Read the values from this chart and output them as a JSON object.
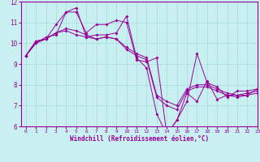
{
  "xlabel": "Windchill (Refroidissement éolien,°C)",
  "background_color": "#c8f0f0",
  "grid_color": "#b0e0e0",
  "line_color": "#990099",
  "xlim": [
    -0.5,
    23
  ],
  "ylim": [
    6,
    12
  ],
  "yticks": [
    6,
    7,
    8,
    9,
    10,
    11,
    12
  ],
  "xticks": [
    0,
    1,
    2,
    3,
    4,
    5,
    6,
    7,
    8,
    9,
    10,
    11,
    12,
    13,
    14,
    15,
    16,
    17,
    18,
    19,
    20,
    21,
    22,
    23
  ],
  "series": [
    [
      9.4,
      10.1,
      10.2,
      10.9,
      11.5,
      11.5,
      10.5,
      10.9,
      10.9,
      11.1,
      11.0,
      9.2,
      9.1,
      9.3,
      5.6,
      6.3,
      7.2,
      9.5,
      8.1,
      7.9,
      7.4,
      7.7,
      7.7,
      7.8
    ],
    [
      9.4,
      10.1,
      10.2,
      10.5,
      10.7,
      10.6,
      10.4,
      10.2,
      10.3,
      10.2,
      9.8,
      9.5,
      9.3,
      7.5,
      7.2,
      7.0,
      7.8,
      8.0,
      8.0,
      7.8,
      7.6,
      7.5,
      7.6,
      7.7
    ],
    [
      9.4,
      10.0,
      10.2,
      10.5,
      10.6,
      10.4,
      10.3,
      10.2,
      10.3,
      10.2,
      9.7,
      9.4,
      9.2,
      7.4,
      7.0,
      6.8,
      7.7,
      7.9,
      7.9,
      7.7,
      7.5,
      7.4,
      7.5,
      7.6
    ],
    [
      9.4,
      10.0,
      10.3,
      10.4,
      11.5,
      11.7,
      10.3,
      10.4,
      10.4,
      10.5,
      11.3,
      9.3,
      8.8,
      6.6,
      5.6,
      6.3,
      7.6,
      7.2,
      8.2,
      7.3,
      7.5,
      7.5,
      7.5,
      7.8
    ]
  ]
}
